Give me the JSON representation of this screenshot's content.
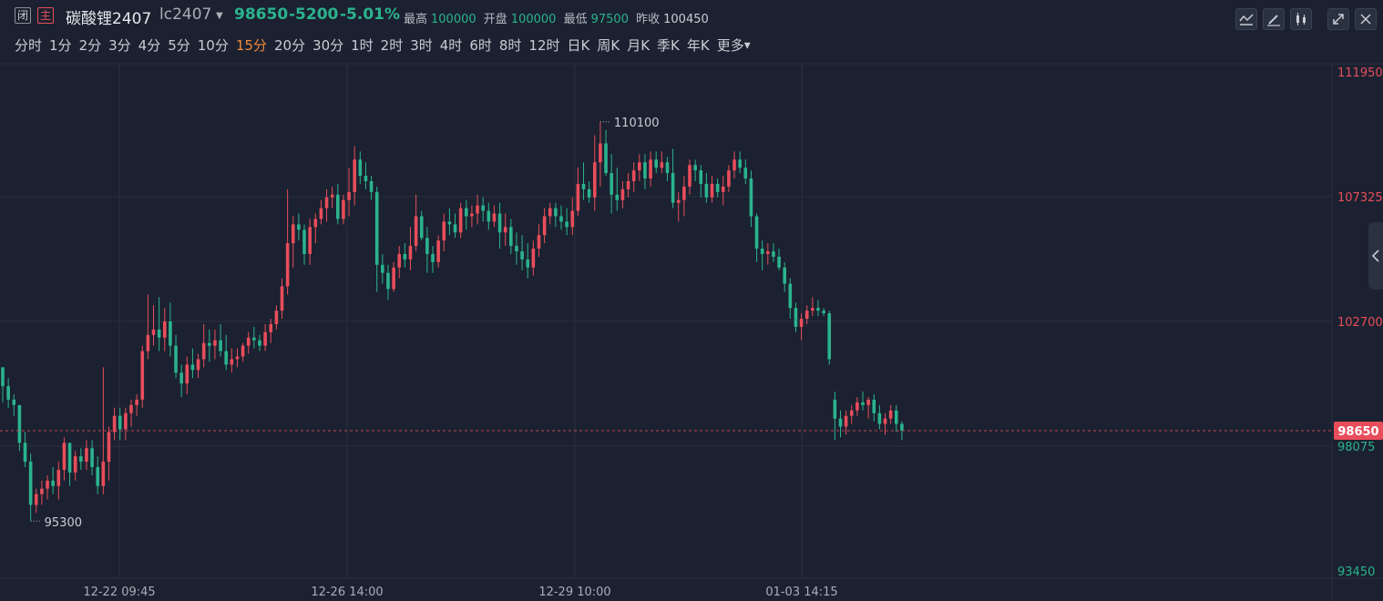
{
  "header": {
    "close_badge": "闭",
    "main_badge": "主",
    "name": "碳酸锂2407",
    "code": "lc2407",
    "price": "98650",
    "change": "-5200",
    "change_pct": "-5.01%",
    "high_label": "最高",
    "high_value": "100000",
    "open_label": "开盘",
    "open_value": "100000",
    "low_label": "最低",
    "low_value": "97500",
    "prev_close_label": "昨收",
    "prev_close_value": "100450"
  },
  "toolbar": {
    "icons": [
      "indicator-icon",
      "pen-icon",
      "candlestick-icon",
      "expand-icon",
      "close-icon"
    ]
  },
  "periods": [
    {
      "label": "分时",
      "active": false
    },
    {
      "label": "1分",
      "active": false
    },
    {
      "label": "2分",
      "active": false
    },
    {
      "label": "3分",
      "active": false
    },
    {
      "label": "4分",
      "active": false
    },
    {
      "label": "5分",
      "active": false
    },
    {
      "label": "10分",
      "active": false
    },
    {
      "label": "15分",
      "active": true
    },
    {
      "label": "20分",
      "active": false
    },
    {
      "label": "30分",
      "active": false
    },
    {
      "label": "1时",
      "active": false
    },
    {
      "label": "2时",
      "active": false
    },
    {
      "label": "3时",
      "active": false
    },
    {
      "label": "4时",
      "active": false
    },
    {
      "label": "6时",
      "active": false
    },
    {
      "label": "8时",
      "active": false
    },
    {
      "label": "12时",
      "active": false
    },
    {
      "label": "日K",
      "active": false
    },
    {
      "label": "周K",
      "active": false
    },
    {
      "label": "月K",
      "active": false
    },
    {
      "label": "季K",
      "active": false
    },
    {
      "label": "年K",
      "active": false
    }
  ],
  "more_label": "更多",
  "colors": {
    "background": "#1b2130",
    "up": "#e84d5b",
    "down": "#2bb38e",
    "grid": "#283040",
    "active_period": "#f08a3c"
  },
  "chart_data": {
    "type": "candlestick",
    "y_ticks": [
      "111950",
      "107325",
      "102700",
      "98075",
      "93450"
    ],
    "ylim": [
      93450,
      111950
    ],
    "x_ticks": [
      "12-22 09:45",
      "12-26 14:00",
      "12-29 10:00",
      "01-03 14:15"
    ],
    "last_price_label": "98650",
    "last_price": 98650,
    "max_annotation": "110100",
    "min_annotation": "95300",
    "ohlc": [
      [
        101000,
        101000,
        99700,
        100300
      ],
      [
        100300,
        100600,
        99500,
        99800
      ],
      [
        99800,
        100000,
        99200,
        99600
      ],
      [
        99600,
        99600,
        97900,
        98200
      ],
      [
        98200,
        98600,
        97300,
        97500
      ],
      [
        97500,
        97800,
        95300,
        95900
      ],
      [
        95900,
        96500,
        95600,
        96300
      ],
      [
        96300,
        96800,
        95900,
        96500
      ],
      [
        96500,
        97000,
        96100,
        96800
      ],
      [
        96800,
        97300,
        96300,
        96600
      ],
      [
        96600,
        97500,
        96100,
        97200
      ],
      [
        97200,
        98400,
        96800,
        98200
      ],
      [
        98200,
        98200,
        96600,
        97100
      ],
      [
        97100,
        97900,
        96800,
        97700
      ],
      [
        97700,
        98000,
        97200,
        97500
      ],
      [
        97500,
        98300,
        97200,
        98000
      ],
      [
        98000,
        98300,
        97000,
        97300
      ],
      [
        97300,
        97700,
        96300,
        96600
      ],
      [
        96600,
        101000,
        96300,
        97500
      ],
      [
        97500,
        98800,
        96800,
        98600
      ],
      [
        98600,
        99500,
        98300,
        99200
      ],
      [
        99200,
        99500,
        98300,
        98700
      ],
      [
        98700,
        99500,
        98300,
        99300
      ],
      [
        99300,
        99800,
        98800,
        99600
      ],
      [
        99600,
        100000,
        99200,
        99800
      ],
      [
        99800,
        101800,
        99500,
        101600
      ],
      [
        101600,
        103700,
        101300,
        102200
      ],
      [
        102200,
        103300,
        101800,
        102400
      ],
      [
        102400,
        103600,
        101600,
        102100
      ],
      [
        102100,
        103200,
        101600,
        102700
      ],
      [
        102700,
        103400,
        101400,
        101800
      ],
      [
        101800,
        102200,
        100600,
        100800
      ],
      [
        100800,
        101100,
        99900,
        100400
      ],
      [
        100400,
        101400,
        100000,
        101100
      ],
      [
        101100,
        101700,
        100600,
        100900
      ],
      [
        100900,
        101500,
        100600,
        101300
      ],
      [
        101300,
        102600,
        101000,
        101900
      ],
      [
        101900,
        102400,
        101200,
        101800
      ],
      [
        101800,
        102400,
        101300,
        102000
      ],
      [
        102000,
        102600,
        101400,
        101600
      ],
      [
        101600,
        102200,
        100900,
        101100
      ],
      [
        101100,
        101700,
        100800,
        101300
      ],
      [
        101300,
        101700,
        101000,
        101400
      ],
      [
        101400,
        101900,
        101200,
        101800
      ],
      [
        101800,
        102300,
        101500,
        102100
      ],
      [
        102100,
        102500,
        101700,
        102000
      ],
      [
        102000,
        102200,
        101600,
        101800
      ],
      [
        101800,
        102600,
        101600,
        102300
      ],
      [
        102300,
        102800,
        101900,
        102600
      ],
      [
        102600,
        103300,
        102400,
        103100
      ],
      [
        103100,
        104300,
        102800,
        104000
      ],
      [
        104000,
        107600,
        103700,
        105600
      ],
      [
        105600,
        106600,
        104700,
        106300
      ],
      [
        106300,
        106700,
        105700,
        106100
      ],
      [
        106100,
        106300,
        104800,
        105200
      ],
      [
        105200,
        106500,
        104800,
        106200
      ],
      [
        106200,
        106700,
        105600,
        106500
      ],
      [
        106500,
        107200,
        106300,
        106900
      ],
      [
        106900,
        107600,
        106400,
        107300
      ],
      [
        107300,
        107700,
        106900,
        107400
      ],
      [
        107400,
        107800,
        106300,
        106500
      ],
      [
        106500,
        107400,
        106300,
        107200
      ],
      [
        107200,
        108400,
        106600,
        107500
      ],
      [
        107500,
        109200,
        107000,
        108700
      ],
      [
        108700,
        109000,
        107800,
        108100
      ],
      [
        108100,
        108600,
        107600,
        107900
      ],
      [
        107900,
        108100,
        107200,
        107500
      ],
      [
        107500,
        107700,
        103800,
        104800
      ],
      [
        104800,
        105200,
        104100,
        104500
      ],
      [
        104500,
        104800,
        103500,
        103900
      ],
      [
        103900,
        104900,
        103800,
        104700
      ],
      [
        104700,
        105500,
        104300,
        105200
      ],
      [
        105200,
        105600,
        104700,
        105000
      ],
      [
        105000,
        106200,
        104600,
        105500
      ],
      [
        105500,
        107400,
        105300,
        106600
      ],
      [
        106600,
        106800,
        105700,
        105800
      ],
      [
        105800,
        106200,
        104500,
        105200
      ],
      [
        105200,
        105500,
        104500,
        104900
      ],
      [
        104900,
        105900,
        104700,
        105700
      ],
      [
        105700,
        106700,
        105300,
        106400
      ],
      [
        106400,
        106900,
        105900,
        106300
      ],
      [
        106300,
        106700,
        105800,
        106000
      ],
      [
        106000,
        107100,
        105800,
        106900
      ],
      [
        106900,
        107200,
        106100,
        106600
      ],
      [
        106600,
        107000,
        106200,
        106700
      ],
      [
        106700,
        107400,
        106300,
        107000
      ],
      [
        107000,
        107300,
        106400,
        106800
      ],
      [
        106800,
        107100,
        106100,
        106400
      ],
      [
        106400,
        107000,
        106200,
        106700
      ],
      [
        106700,
        107100,
        105400,
        106000
      ],
      [
        106000,
        106700,
        105500,
        106200
      ],
      [
        106200,
        106500,
        105200,
        105500
      ],
      [
        105500,
        106000,
        104800,
        105300
      ],
      [
        105300,
        105900,
        104600,
        105000
      ],
      [
        105000,
        105600,
        104300,
        104700
      ],
      [
        104700,
        105700,
        104400,
        105400
      ],
      [
        105400,
        106300,
        105100,
        105900
      ],
      [
        105900,
        106900,
        105600,
        106600
      ],
      [
        106600,
        107100,
        106300,
        106900
      ],
      [
        106900,
        107100,
        106200,
        106600
      ],
      [
        106600,
        107000,
        106100,
        106400
      ],
      [
        106400,
        106900,
        105900,
        106200
      ],
      [
        106200,
        107300,
        105900,
        106800
      ],
      [
        106800,
        108400,
        106600,
        107800
      ],
      [
        107800,
        108600,
        107200,
        107600
      ],
      [
        107600,
        107900,
        107100,
        107300
      ],
      [
        107300,
        109600,
        106800,
        108600
      ],
      [
        108600,
        110100,
        107700,
        109300
      ],
      [
        109300,
        109800,
        108100,
        108200
      ],
      [
        108200,
        108900,
        106700,
        107400
      ],
      [
        107400,
        108400,
        106800,
        107200
      ],
      [
        107200,
        107900,
        106900,
        107600
      ],
      [
        107600,
        108200,
        107300,
        107900
      ],
      [
        107900,
        108600,
        107500,
        108300
      ],
      [
        108300,
        108900,
        107900,
        108600
      ],
      [
        108600,
        108900,
        107600,
        108000
      ],
      [
        108000,
        109000,
        107700,
        108700
      ],
      [
        108700,
        109000,
        108200,
        108400
      ],
      [
        108400,
        109000,
        108200,
        108600
      ],
      [
        108600,
        108800,
        107900,
        108200
      ],
      [
        108200,
        109100,
        106900,
        107100
      ],
      [
        107100,
        107500,
        106400,
        107200
      ],
      [
        107200,
        108100,
        106600,
        107700
      ],
      [
        107700,
        108700,
        107400,
        108500
      ],
      [
        108500,
        108700,
        107900,
        108300
      ],
      [
        108300,
        108500,
        107300,
        107800
      ],
      [
        107800,
        108200,
        107100,
        107300
      ],
      [
        107300,
        108100,
        107100,
        107800
      ],
      [
        107800,
        108000,
        107300,
        107500
      ],
      [
        107500,
        108100,
        107000,
        107700
      ],
      [
        107700,
        108500,
        107500,
        108300
      ],
      [
        108300,
        109000,
        108000,
        108700
      ],
      [
        108700,
        109000,
        108200,
        108400
      ],
      [
        108400,
        108700,
        107800,
        108000
      ],
      [
        108000,
        108300,
        106200,
        106600
      ],
      [
        106600,
        106700,
        104900,
        105400
      ],
      [
        105400,
        105700,
        104600,
        105200
      ],
      [
        105200,
        105600,
        104800,
        105300
      ],
      [
        105300,
        105600,
        104900,
        105100
      ],
      [
        105100,
        105400,
        104600,
        104700
      ],
      [
        104700,
        104900,
        103800,
        104100
      ],
      [
        104100,
        104300,
        102800,
        103200
      ],
      [
        103200,
        103400,
        102300,
        102500
      ],
      [
        102500,
        103000,
        102000,
        102800
      ],
      [
        102800,
        103300,
        102600,
        103100
      ],
      [
        103100,
        103600,
        102900,
        103200
      ],
      [
        103200,
        103500,
        102900,
        103100
      ],
      [
        103100,
        103200,
        102900,
        103000
      ],
      [
        103000,
        103100,
        101100,
        101300
      ],
      [
        99800,
        100100,
        98300,
        99100
      ],
      [
        99100,
        99400,
        98400,
        98800
      ],
      [
        98800,
        99400,
        98500,
        99200
      ],
      [
        99200,
        99600,
        98900,
        99400
      ],
      [
        99400,
        99900,
        99200,
        99700
      ],
      [
        99700,
        100100,
        99400,
        99600
      ],
      [
        99600,
        99900,
        99100,
        99800
      ],
      [
        99800,
        100000,
        99000,
        99300
      ],
      [
        99300,
        99600,
        98700,
        98900
      ],
      [
        98900,
        99300,
        98500,
        99100
      ],
      [
        99100,
        99600,
        98900,
        99400
      ],
      [
        99400,
        99600,
        98600,
        98900
      ],
      [
        98900,
        99000,
        98300,
        98650
      ]
    ]
  }
}
